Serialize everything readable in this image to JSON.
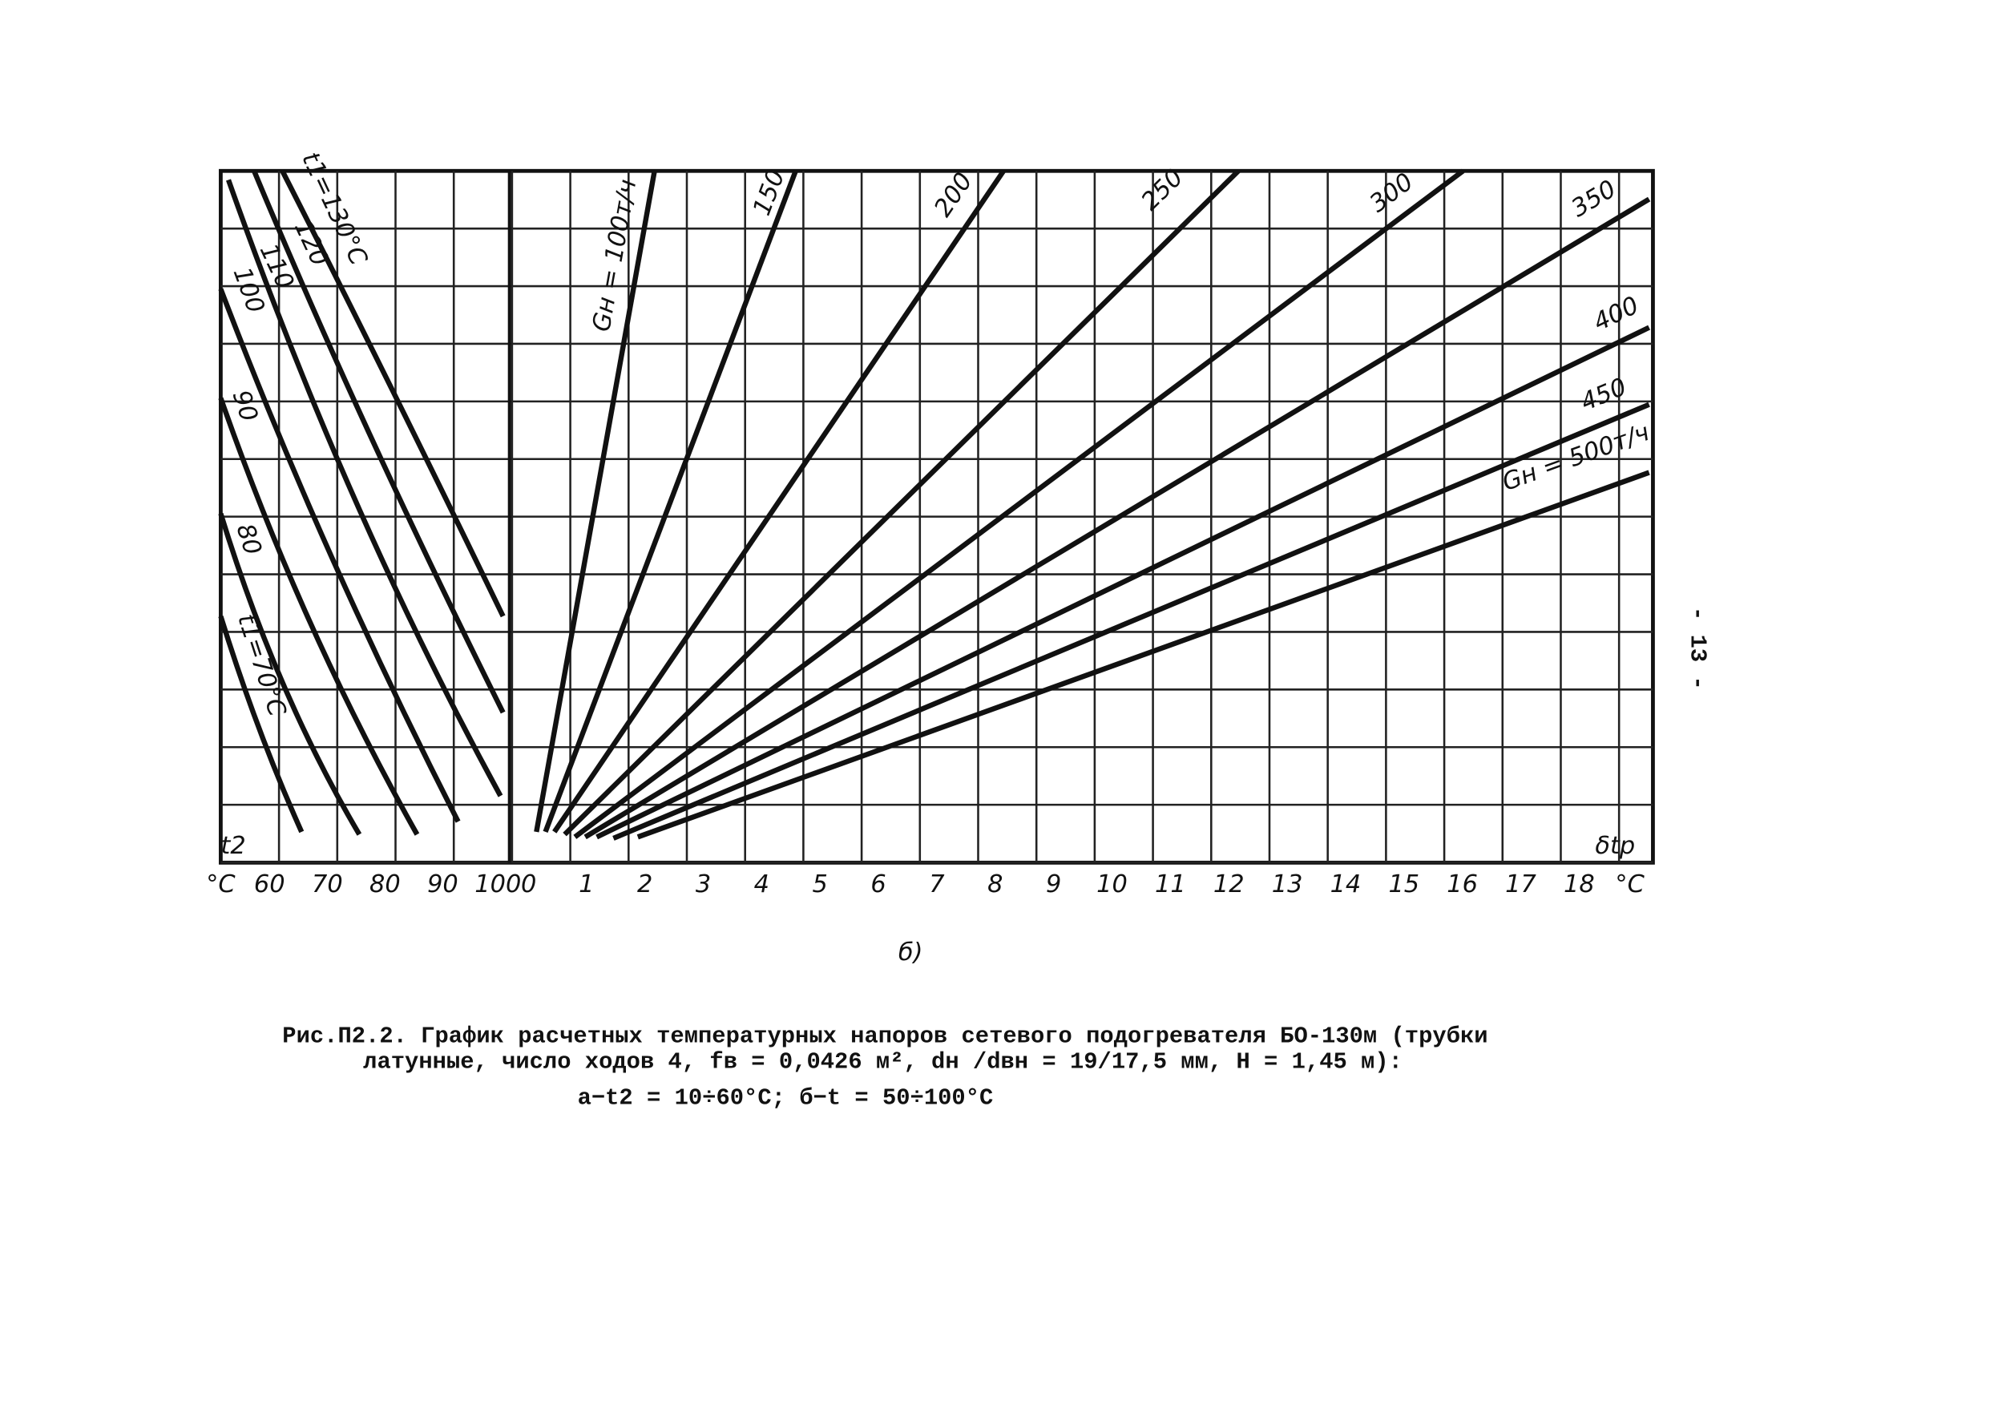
{
  "figure": {
    "left_axis_labels": [
      "°C",
      "60",
      "70",
      "80",
      "90",
      "100"
    ],
    "right_axis_labels": [
      "0",
      "1",
      "2",
      "3",
      "4",
      "5",
      "6",
      "7",
      "8",
      "9",
      "10",
      "11",
      "12",
      "13",
      "14",
      "15",
      "16",
      "17",
      "18",
      "°C"
    ],
    "left_corner_label": "t2",
    "right_corner_label": "δtp",
    "left_curve_labels": [
      "t1=130°C",
      "120",
      "110",
      "100",
      "90",
      "80",
      "t1=70°C"
    ],
    "right_line_labels": [
      "Gн = 100т/ч",
      "150",
      "200",
      "250",
      "300",
      "350",
      "400",
      "450",
      "Gн = 500т/ч"
    ],
    "subfigure_label": "б)"
  },
  "caption": {
    "lines": [
      "Рис.П2.2. График расчетных температурных напоров сетевого подогревателя БО-130м (трубки",
      "латунные, число ходов 4, fв = 0,0426 м², dн /dвн = 19/17,5 мм, H = 1,45 м):",
      "a−t2  = 10÷60°C;  б−t  = 50÷100°C"
    ]
  },
  "page_number": "- 13 -"
}
